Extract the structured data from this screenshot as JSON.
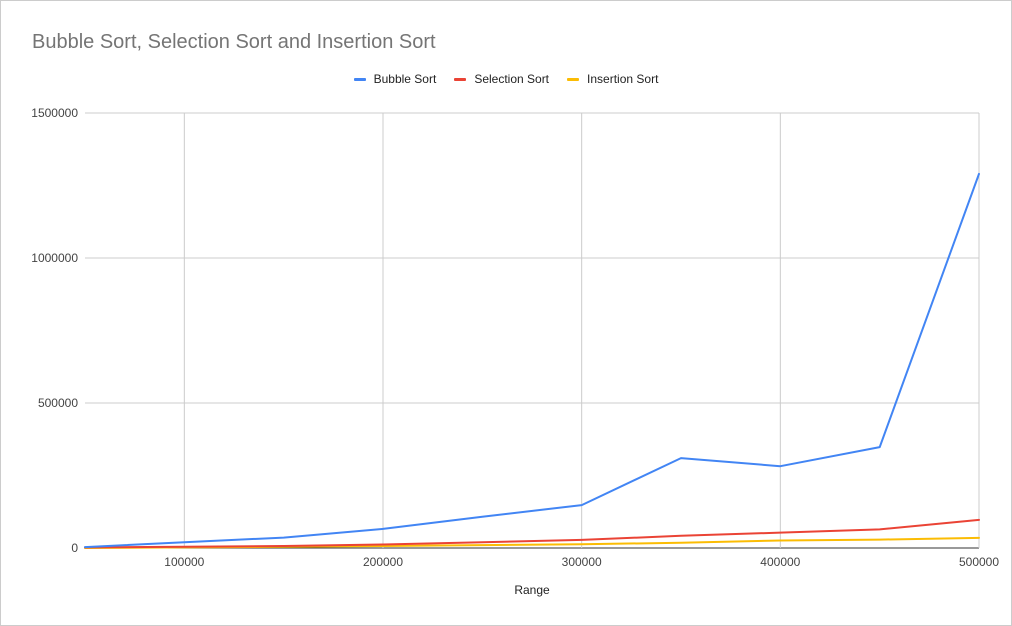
{
  "chart_data": {
    "type": "line",
    "title": "Bubble Sort, Selection Sort and Insertion Sort",
    "xlabel": "Range",
    "ylabel": "",
    "xlim": [
      50000,
      500000
    ],
    "ylim": [
      0,
      1500000
    ],
    "x_ticks": [
      "100000",
      "200000",
      "300000",
      "400000",
      "500000"
    ],
    "y_ticks": [
      "0",
      "500000",
      "1000000",
      "1500000"
    ],
    "grid": true,
    "legend_position": "top",
    "x": [
      50000,
      100000,
      150000,
      200000,
      250000,
      300000,
      350000,
      400000,
      450000,
      500000
    ],
    "series": [
      {
        "name": "Bubble Sort",
        "color": "#4285f4",
        "values": [
          3000,
          20000,
          36000,
          66000,
          108000,
          148000,
          310000,
          282000,
          348000,
          1290000
        ]
      },
      {
        "name": "Selection Sort",
        "color": "#ea4335",
        "values": [
          2000,
          4000,
          7000,
          12000,
          20000,
          28000,
          42000,
          53000,
          64000,
          97000
        ]
      },
      {
        "name": "Insertion Sort",
        "color": "#fbbc04",
        "values": [
          0,
          2000,
          4000,
          7000,
          10000,
          13000,
          18000,
          26000,
          29000,
          35000
        ]
      }
    ]
  }
}
